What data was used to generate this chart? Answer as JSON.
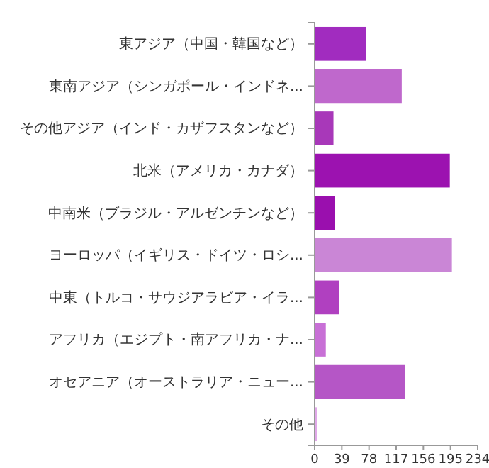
{
  "chart_data": {
    "type": "bar",
    "orientation": "horizontal",
    "categories": [
      "東アジア（中国・韓国など）",
      "東南アジア（シンガポール・インドネ...",
      "その他アジア（インド・カザフスタンなど）",
      "北米（アメリカ・カナダ）",
      "中南米（ブラジル・アルゼンチンなど）",
      "ヨーロッパ（イギリス・ドイツ・ロシ...",
      "中東（トルコ・サウジアラビア・イラ...",
      "アフリカ（エジプト・南アフリカ・ナ...",
      "オセアニア（オーストラリア・ニュー...",
      "その他"
    ],
    "values": [
      74,
      125,
      27,
      194,
      29,
      197,
      35,
      16,
      130,
      4
    ],
    "colors": [
      "#a12cbf",
      "#bf68cc",
      "#a838b9",
      "#9c12b0",
      "#9a0fae",
      "#ca86d6",
      "#b040c0",
      "#c870d6",
      "#b556c6",
      "#e0a8e8"
    ],
    "xlim": [
      0,
      234
    ],
    "xticks": [
      0,
      39,
      78,
      117,
      156,
      195,
      234
    ],
    "grid": false
  }
}
